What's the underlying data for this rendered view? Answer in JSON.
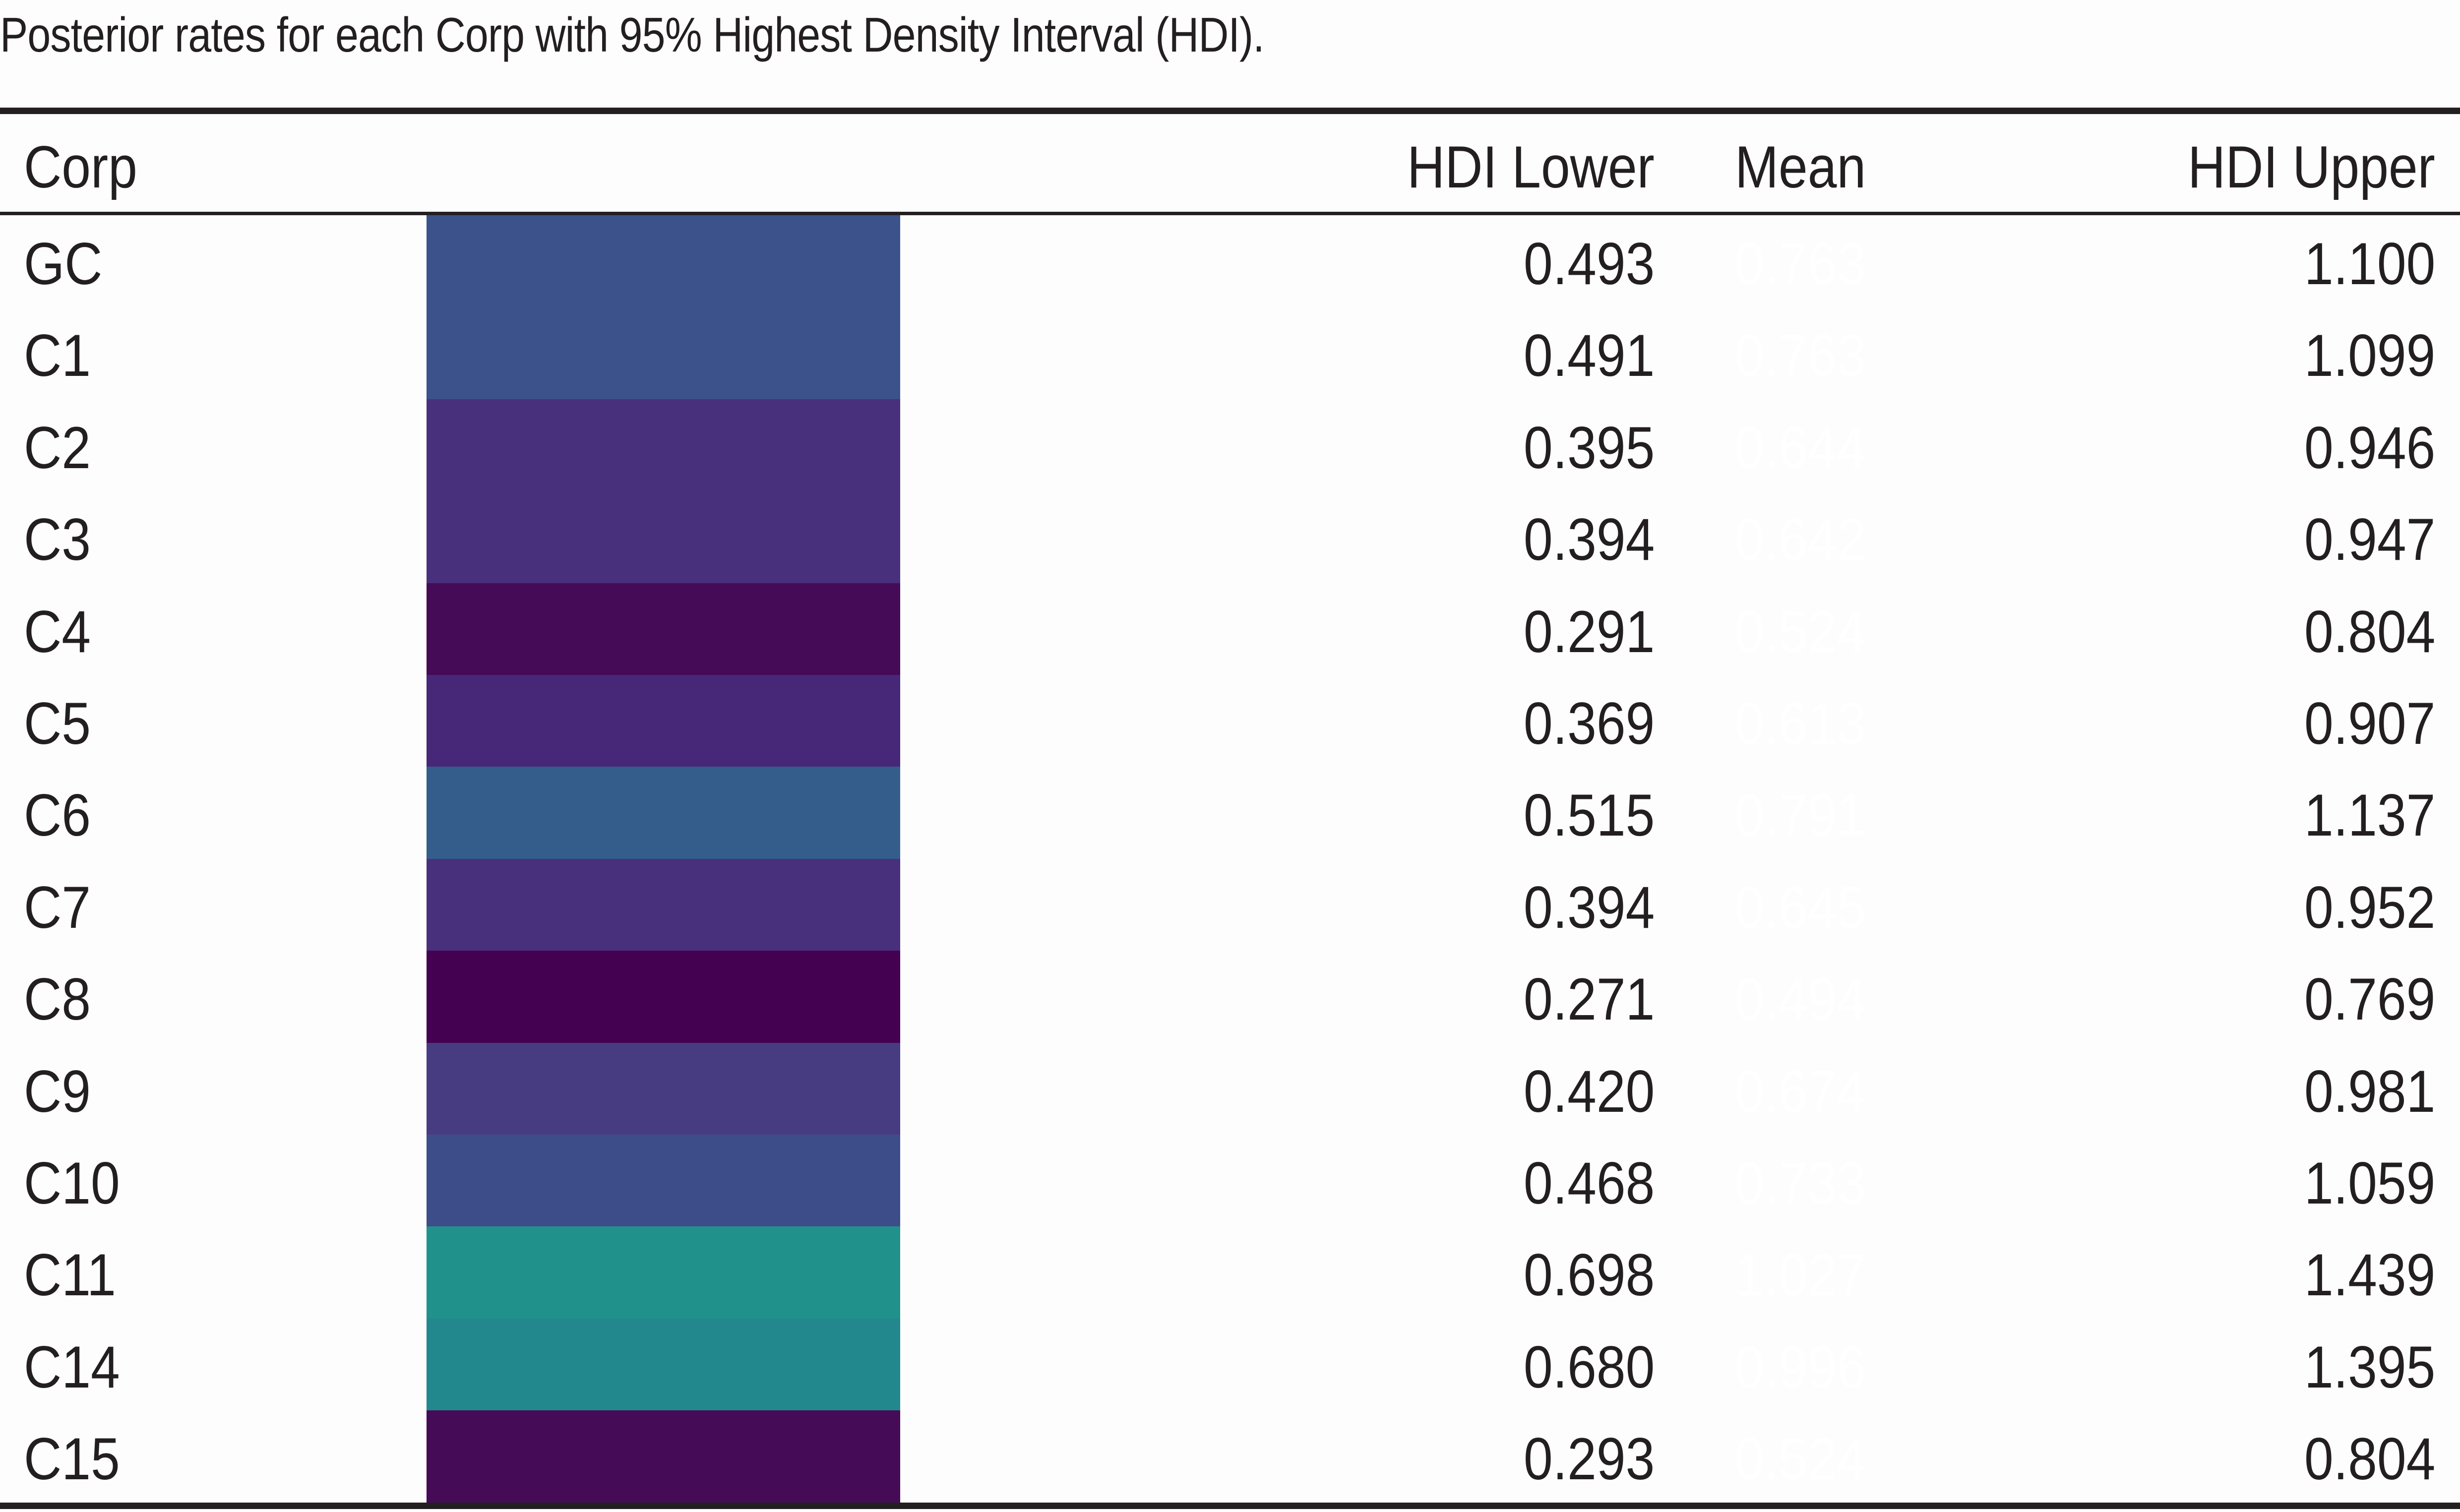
{
  "caption": "Posterior rates for each Corp with 95% Highest Density Interval (HDI).",
  "table": {
    "headers": {
      "corp": "Corp",
      "mean": "Mean",
      "hdi_lower": "HDI Lower",
      "hdi_upper": "HDI Upper"
    },
    "rows": [
      {
        "corp": "GC",
        "mean": "0.763",
        "hdi_lower": "0.493",
        "hdi_upper": "1.100",
        "mean_color": "#3b528b"
      },
      {
        "corp": "C1",
        "mean": "0.763",
        "hdi_lower": "0.491",
        "hdi_upper": "1.099",
        "mean_color": "#3b528b"
      },
      {
        "corp": "C2",
        "mean": "0.644",
        "hdi_lower": "0.395",
        "hdi_upper": "0.946",
        "mean_color": "#48307c"
      },
      {
        "corp": "C3",
        "mean": "0.642",
        "hdi_lower": "0.394",
        "hdi_upper": "0.947",
        "mean_color": "#48307c"
      },
      {
        "corp": "C4",
        "mean": "0.524",
        "hdi_lower": "0.291",
        "hdi_upper": "0.804",
        "mean_color": "#450b57"
      },
      {
        "corp": "C5",
        "mean": "0.613",
        "hdi_lower": "0.369",
        "hdi_upper": "0.907",
        "mean_color": "#472777"
      },
      {
        "corp": "C6",
        "mean": "0.791",
        "hdi_lower": "0.515",
        "hdi_upper": "1.137",
        "mean_color": "#355d8c"
      },
      {
        "corp": "C7",
        "mean": "0.645",
        "hdi_lower": "0.394",
        "hdi_upper": "0.952",
        "mean_color": "#48307c"
      },
      {
        "corp": "C8",
        "mean": "0.494",
        "hdi_lower": "0.271",
        "hdi_upper": "0.769",
        "mean_color": "#440152"
      },
      {
        "corp": "C9",
        "mean": "0.674",
        "hdi_lower": "0.420",
        "hdi_upper": "0.981",
        "mean_color": "#473c82"
      },
      {
        "corp": "C10",
        "mean": "0.733",
        "hdi_lower": "0.468",
        "hdi_upper": "1.059",
        "mean_color": "#3d4d8a"
      },
      {
        "corp": "C11",
        "mean": "1.027",
        "hdi_lower": "0.698",
        "hdi_upper": "1.439",
        "mean_color": "#21918c"
      },
      {
        "corp": "C14",
        "mean": "0.996",
        "hdi_lower": "0.680",
        "hdi_upper": "1.395",
        "mean_color": "#23888e"
      },
      {
        "corp": "C15",
        "mean": "0.524",
        "hdi_lower": "0.293",
        "hdi_upper": "0.804",
        "mean_color": "#450b57"
      }
    ]
  }
}
